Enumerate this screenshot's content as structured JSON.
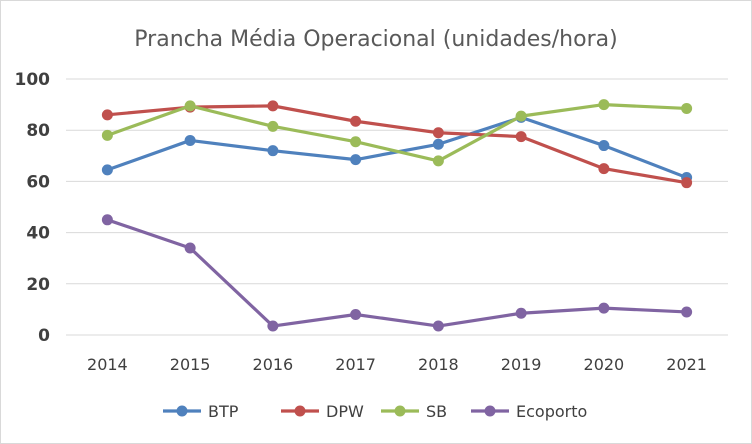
{
  "chart_data": {
    "type": "line",
    "title": "Prancha Média Operacional (unidades/hora)",
    "xlabel": "",
    "ylabel": "",
    "categories": [
      "2014",
      "2015",
      "2016",
      "2017",
      "2018",
      "2019",
      "2020",
      "2021"
    ],
    "ylim": [
      0,
      100
    ],
    "yticks": [
      "0",
      "20",
      "40",
      "60",
      "80",
      "100"
    ],
    "grid": true,
    "legend_position": "bottom",
    "series": [
      {
        "name": "BTP",
        "color": "#4f81bd",
        "values": [
          64.5,
          76,
          72,
          68.5,
          74.5,
          85,
          74,
          61.5
        ]
      },
      {
        "name": "DPW",
        "color": "#c0504d",
        "values": [
          86,
          89,
          89.5,
          83.5,
          79,
          77.5,
          65,
          59.5
        ]
      },
      {
        "name": "SB",
        "color": "#9bbb59",
        "values": [
          78,
          89.5,
          81.5,
          75.5,
          68,
          85.5,
          90,
          88.5
        ]
      },
      {
        "name": "Ecoporto",
        "color": "#8064a2",
        "values": [
          45,
          34,
          3.5,
          8,
          3.5,
          8.5,
          10.5,
          9
        ]
      }
    ]
  }
}
